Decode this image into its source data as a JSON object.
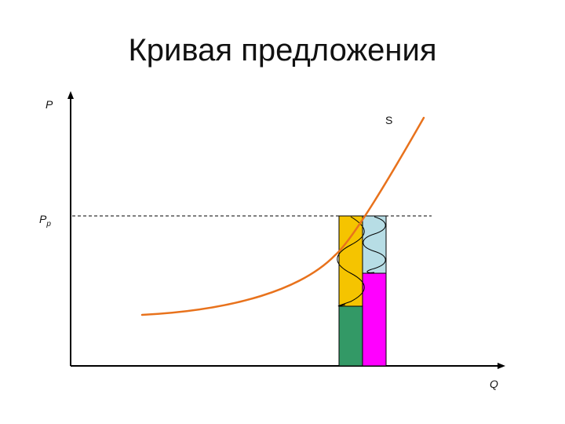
{
  "title": "Кривая предложения",
  "axes": {
    "y_label": "P",
    "x_label": "Q",
    "price_level_label_main": "P",
    "price_level_label_sub": "p"
  },
  "curve_label": "S",
  "colors": {
    "curve": "#e8721c",
    "axis": "#000000",
    "bar_left_top": "#f5c400",
    "bar_left_bottom": "#339966",
    "bar_right_top": "#b7dde5",
    "bar_right_bottom": "#ff00ff",
    "guide_line": "#000000"
  }
}
